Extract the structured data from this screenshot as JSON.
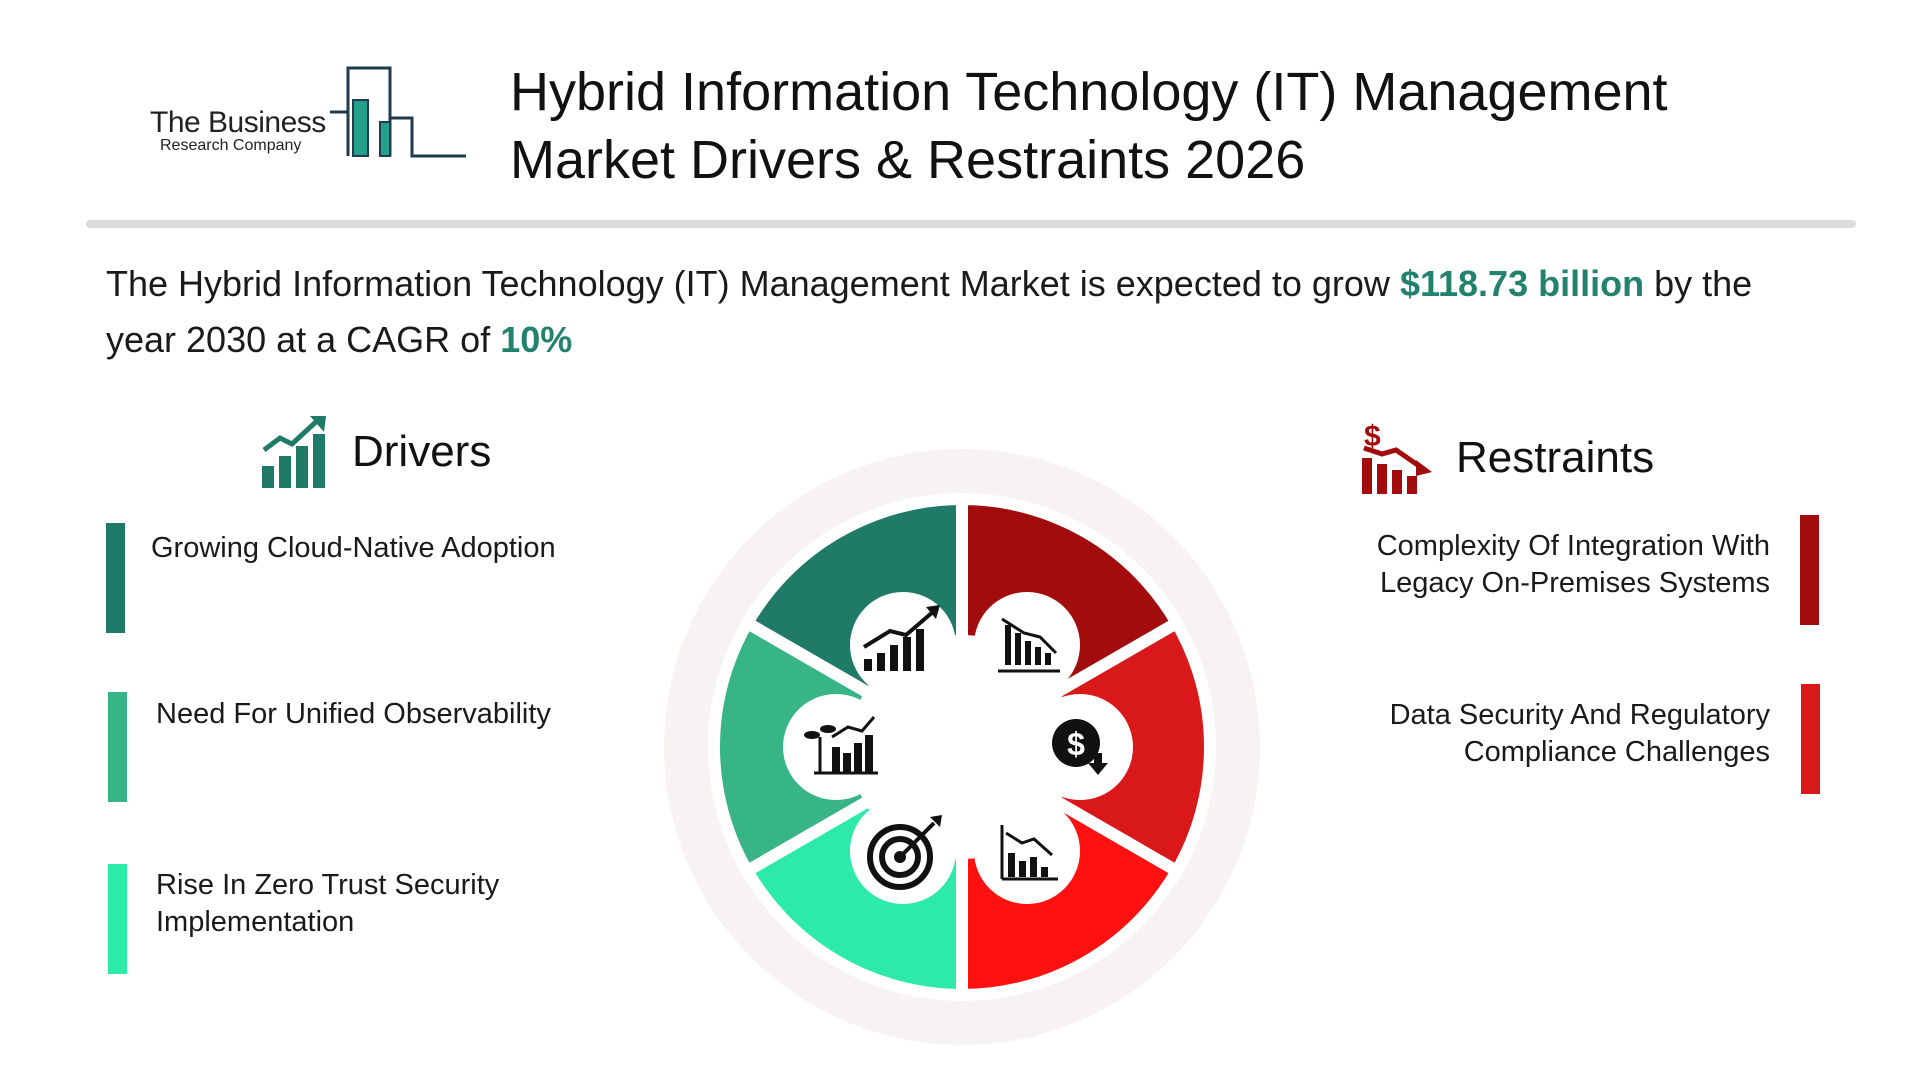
{
  "logo": {
    "line1": "The Business",
    "line2": "Research Company",
    "colors": {
      "dark": "#1f3b4d",
      "accent": "#23a08a"
    }
  },
  "title": {
    "line1": "Hybrid Information Technology (IT) Management",
    "line2": "Market Drivers & Restraints 2026"
  },
  "summary": {
    "prefix": "The Hybrid Information Technology (IT) Management Market is expected to grow",
    "amount": "$118.73 billion",
    "middle": "by the year 2030 at a CAGR of",
    "cagr": "10%"
  },
  "drivers": {
    "heading": "Drivers",
    "icon": "growth-chart-icon",
    "items": [
      {
        "text": "Growing Cloud-Native Adoption",
        "color": "#1f7a67"
      },
      {
        "text": "Need For Unified Observability",
        "color": "#37b586"
      },
      {
        "text": "Rise In Zero Trust Security Implementation",
        "color": "#2deaa9"
      }
    ]
  },
  "restraints": {
    "heading": "Restraints",
    "icon": "dollar-decline-chart-icon",
    "items": [
      {
        "text": "Complexity Of Integration With Legacy On-Premises Systems",
        "color": "#a20c0c"
      },
      {
        "text": "Data Security And Regulatory Compliance Challenges",
        "color": "#d9181a"
      }
    ]
  },
  "wheel": {
    "segments": [
      {
        "side": "drivers",
        "color": "#1f7a67",
        "icon": "rising-bar-chart-icon"
      },
      {
        "side": "drivers",
        "color": "#37b586",
        "icon": "plant-growth-chart-icon"
      },
      {
        "side": "drivers",
        "color": "#2deaa9",
        "icon": "target-arrow-icon"
      },
      {
        "side": "restraints",
        "color": "#a20c0c",
        "icon": "declining-bar-chart-icon"
      },
      {
        "side": "restraints",
        "color": "#d9181a",
        "icon": "dollar-down-icon"
      },
      {
        "side": "restraints",
        "color": "#ff1111",
        "icon": "downtrend-chart-icon"
      }
    ]
  }
}
